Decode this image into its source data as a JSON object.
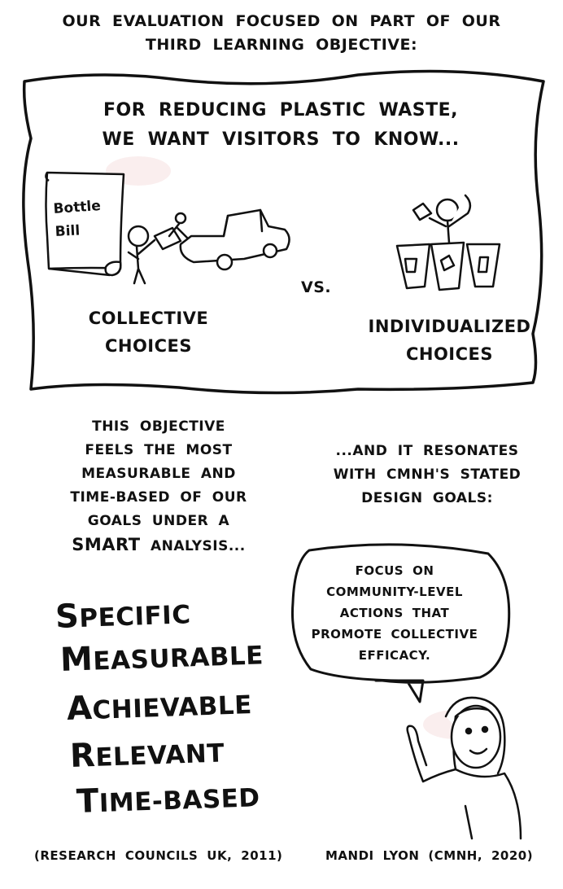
{
  "header": {
    "line1": "Our evaluation focused on part of our",
    "line2": "third learning objective:"
  },
  "frame": {
    "title_line1": "For reducing plastic waste,",
    "title_line2": "we want visitors to know...",
    "scroll_text_line1": "Bottle",
    "scroll_text_line2": "Bill",
    "collective_line1": "Collective",
    "collective_line2": "choices",
    "vs": "vs.",
    "individual_line1": "Individualized",
    "individual_line2": "choices"
  },
  "objective": {
    "lines": [
      "This objective",
      "feels the most",
      "measurable and",
      "time-based of our",
      "goals under a"
    ],
    "smart_word": "SMART",
    "last_tail": "analysis..."
  },
  "resonates": {
    "lines": [
      "...and it resonates",
      "with CMNH's stated",
      "design goals:"
    ]
  },
  "speech_bubble": {
    "lines": [
      "Focus on",
      "community-level",
      "actions that",
      "promote collective",
      "efficacy."
    ]
  },
  "smart_list": [
    {
      "initial": "S",
      "rest": "pecific"
    },
    {
      "initial": "M",
      "rest": "easurable"
    },
    {
      "initial": "A",
      "rest": "chievable"
    },
    {
      "initial": "R",
      "rest": "elevant"
    },
    {
      "initial": "T",
      "rest": "ime-based"
    }
  ],
  "citations": {
    "left": "(Research Councils UK, 2011)",
    "right": "Mandi Lyon (CMNH, 2020)"
  }
}
